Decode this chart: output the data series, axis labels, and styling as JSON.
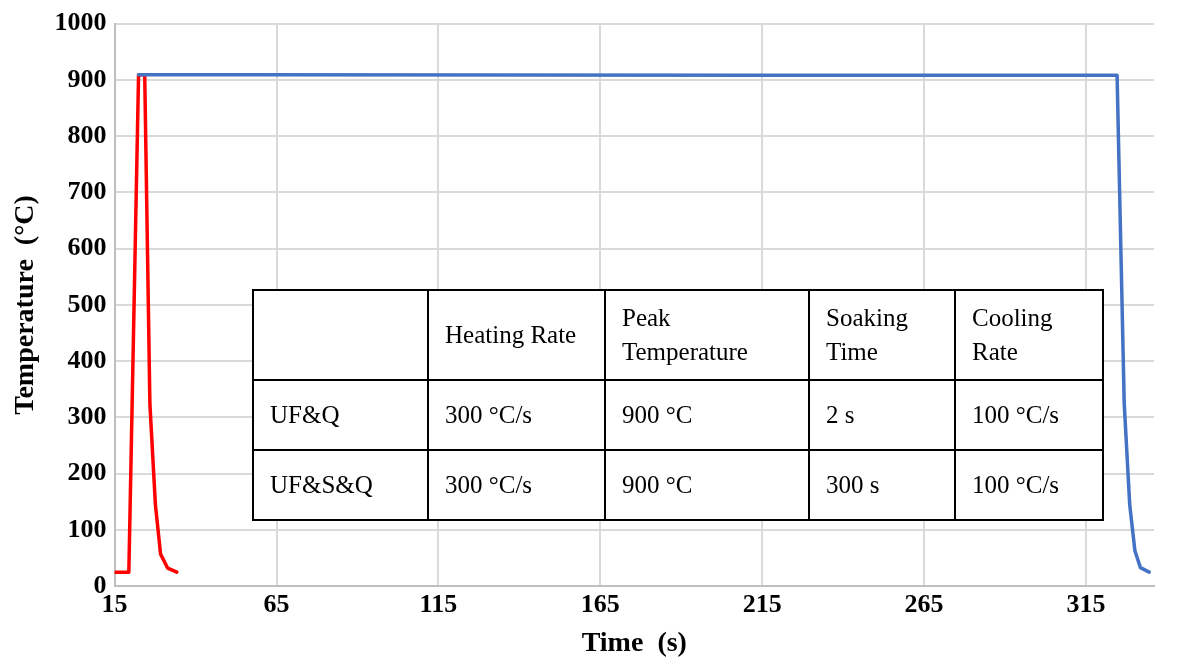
{
  "chart_data": {
    "type": "line",
    "xlabel": "Time  (s)",
    "ylabel": "Temperature  (°C)",
    "xlim": [
      15,
      336
    ],
    "xticks": [
      15,
      65,
      115,
      165,
      215,
      265,
      315
    ],
    "ylim": [
      0,
      1000
    ],
    "yticks": [
      0,
      100,
      200,
      300,
      400,
      500,
      600,
      700,
      800,
      900,
      1000
    ],
    "grid": true,
    "legend": false,
    "marker": "none",
    "line_style": "solid",
    "series": [
      {
        "color": "#4472c4",
        "x": [
          22.4,
          324.6,
          326.8,
          328.5,
          330.1,
          331.8,
          334.5
        ],
        "values": [
          909,
          908,
          325,
          145,
          63,
          33,
          25
        ]
      },
      {
        "color": "#ff0000",
        "x": [
          15,
          19.4,
          22.4,
          24.3,
          25.9,
          27.6,
          29.2,
          31.4,
          34.2
        ],
        "values": [
          25,
          25,
          909,
          909,
          324,
          145,
          57,
          32,
          25
        ]
      }
    ],
    "annotations": [
      "Heating Rate",
      "Peak Temperature",
      "Soaking Time",
      "Cooling Rate",
      "UF&Q",
      "300 °C/s",
      "900 °C",
      "2 s",
      "100 °C/s",
      "UF&S&Q",
      "300 °C/s",
      "900 °C",
      "300 s",
      "100 °C/s"
    ]
  }
}
